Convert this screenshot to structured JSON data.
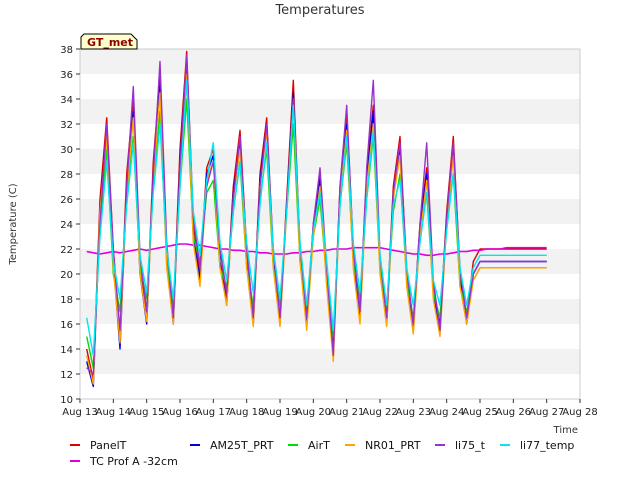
{
  "chart_data": {
    "type": "line",
    "title": "Temperatures",
    "xlabel": "Time",
    "ylabel": "Temperature (C)",
    "station_label": "GT_met",
    "x_ticks": [
      "Aug 13",
      "Aug 14",
      "Aug 15",
      "Aug 16",
      "Aug 17",
      "Aug 18",
      "Aug 19",
      "Aug 20",
      "Aug 21",
      "Aug 22",
      "Aug 23",
      "Aug 24",
      "Aug 25",
      "Aug 26",
      "Aug 27",
      "Aug 28"
    ],
    "xlim": [
      "Aug 13",
      "Aug 28"
    ],
    "ylim": [
      10,
      38
    ],
    "y_ticks": [
      10,
      12,
      14,
      16,
      18,
      20,
      22,
      24,
      26,
      28,
      30,
      32,
      34,
      36,
      38
    ],
    "grid": "horizontal bands",
    "legend": "bottom",
    "x_days": [
      13.2,
      13.4,
      13.6,
      13.8,
      14.0,
      14.2,
      14.4,
      14.6,
      14.8,
      15.0,
      15.2,
      15.4,
      15.6,
      15.8,
      16.0,
      16.2,
      16.4,
      16.6,
      16.8,
      17.0,
      17.2,
      17.4,
      17.6,
      17.8,
      18.0,
      18.2,
      18.4,
      18.6,
      18.8,
      19.0,
      19.2,
      19.4,
      19.6,
      19.8,
      20.0,
      20.2,
      20.4,
      20.6,
      20.8,
      21.0,
      21.2,
      21.4,
      21.6,
      21.8,
      22.0,
      22.2,
      22.4,
      22.6,
      22.8,
      23.0,
      23.2,
      23.4,
      23.6,
      23.8,
      24.0,
      24.2,
      24.4,
      24.6,
      24.8,
      25.0,
      25.2,
      25.4,
      25.6,
      25.8,
      26.0,
      26.2,
      26.4,
      26.6,
      26.8,
      27.0,
      27.2,
      27.4,
      27.6,
      27.8,
      28.0
    ],
    "series": [
      {
        "name": "PanelT",
        "color": "#dd0000",
        "values": [
          14.0,
          11.5,
          26.0,
          32.5,
          22.0,
          15.0,
          28.0,
          34.0,
          21.0,
          16.5,
          29.0,
          35.8,
          22.0,
          16.5,
          30.0,
          37.8,
          24.0,
          20.0,
          28.5,
          30.0,
          22.0,
          18.0,
          27.0,
          31.5,
          22.0,
          16.5,
          28.0,
          32.5,
          21.5,
          16.5,
          26.0,
          35.5,
          22.0,
          16.0,
          24.0,
          28.0,
          20.0,
          14.0,
          27.0,
          33.0,
          22.0,
          17.0,
          28.0,
          33.5,
          21.0,
          16.5,
          27.0,
          31.0,
          20.0,
          16.0,
          24.0,
          28.5,
          19.0,
          16.0,
          25.0,
          31.0,
          20.0,
          16.5,
          21.0,
          22.0,
          22.0,
          22.0,
          22.0,
          22.0,
          22.0,
          22.0,
          22.0,
          22.0,
          22.0,
          22.0,
          22.0,
          22.0,
          22.0,
          22.0,
          22.0
        ]
      },
      {
        "name": "TC Prof A -32cm",
        "color": "#dd00dd",
        "values": [
          21.8,
          21.7,
          21.6,
          21.7,
          21.8,
          21.7,
          21.8,
          21.9,
          22.0,
          21.9,
          22.0,
          22.1,
          22.2,
          22.3,
          22.4,
          22.4,
          22.3,
          22.3,
          22.2,
          22.1,
          22.0,
          22.0,
          21.9,
          21.9,
          21.8,
          21.8,
          21.7,
          21.7,
          21.6,
          21.6,
          21.6,
          21.7,
          21.7,
          21.8,
          21.8,
          21.9,
          21.9,
          22.0,
          22.0,
          22.0,
          22.1,
          22.1,
          22.1,
          22.1,
          22.1,
          22.0,
          21.9,
          21.8,
          21.7,
          21.6,
          21.6,
          21.5,
          21.5,
          21.6,
          21.6,
          21.7,
          21.8,
          21.8,
          21.9,
          21.9,
          22.0,
          22.0,
          22.0,
          22.1,
          22.1,
          22.1,
          22.1,
          22.1,
          22.1,
          22.1,
          22.1,
          22.1,
          22.1,
          22.1,
          22.1
        ]
      },
      {
        "name": "AM25T_PRT",
        "color": "#0000dd",
        "values": [
          13.0,
          11.0,
          25.0,
          31.5,
          21.0,
          14.0,
          27.0,
          33.0,
          20.0,
          16.0,
          28.0,
          35.0,
          21.0,
          16.0,
          29.0,
          37.0,
          23.0,
          19.5,
          28.0,
          29.5,
          21.0,
          17.5,
          26.5,
          30.5,
          21.0,
          16.0,
          27.5,
          32.0,
          21.0,
          16.0,
          25.5,
          34.5,
          21.5,
          15.8,
          23.5,
          27.5,
          19.5,
          13.5,
          26.5,
          32.0,
          21.0,
          16.5,
          27.5,
          33.0,
          20.5,
          16.0,
          26.5,
          30.0,
          19.5,
          15.5,
          23.5,
          28.0,
          18.5,
          15.5,
          24.5,
          30.0,
          19.5,
          16.0,
          20.0,
          21.0,
          21.0,
          21.0,
          21.0,
          21.0,
          21.0,
          21.0,
          21.0,
          21.0,
          21.0,
          21.0,
          21.0,
          21.0,
          21.0,
          21.0,
          21.0
        ]
      },
      {
        "name": "AirT",
        "color": "#00dd00",
        "values": [
          15.0,
          12.5,
          24.0,
          30.0,
          20.0,
          17.0,
          26.0,
          31.0,
          20.5,
          18.0,
          27.0,
          33.0,
          21.0,
          17.5,
          27.0,
          34.0,
          23.0,
          21.0,
          26.5,
          27.5,
          20.5,
          19.0,
          25.0,
          29.0,
          20.5,
          17.5,
          26.0,
          30.0,
          20.5,
          17.5,
          25.0,
          32.0,
          21.0,
          17.0,
          23.0,
          26.0,
          19.5,
          15.0,
          25.5,
          30.5,
          21.0,
          18.0,
          26.0,
          31.0,
          20.5,
          17.0,
          25.0,
          28.0,
          19.5,
          16.5,
          23.0,
          26.5,
          18.5,
          16.5,
          24.0,
          28.0,
          19.0,
          17.0,
          19.5,
          20.5,
          20.5,
          20.5,
          20.5,
          20.5,
          20.5,
          20.5,
          20.5,
          20.5,
          20.5,
          20.5,
          20.5,
          20.5,
          20.5,
          20.5,
          20.5
        ]
      },
      {
        "name": "NR01_PRT",
        "color": "#ffa500",
        "values": [
          13.5,
          11.2,
          25.0,
          31.0,
          20.5,
          14.5,
          26.5,
          32.5,
          20.0,
          16.2,
          27.5,
          34.5,
          20.5,
          16.0,
          28.5,
          36.0,
          22.5,
          19.0,
          27.5,
          29.0,
          20.5,
          17.5,
          26.0,
          30.0,
          20.5,
          15.8,
          27.0,
          31.5,
          20.5,
          15.8,
          25.0,
          34.0,
          21.0,
          15.5,
          23.0,
          27.0,
          19.0,
          13.0,
          26.0,
          31.5,
          20.5,
          16.0,
          27.0,
          32.0,
          20.0,
          15.8,
          26.0,
          29.5,
          19.0,
          15.2,
          23.0,
          27.5,
          18.0,
          15.0,
          24.0,
          29.5,
          19.0,
          16.0,
          19.5,
          20.5,
          20.5,
          20.5,
          20.5,
          20.5,
          20.5,
          20.5,
          20.5,
          20.5,
          20.5,
          20.5,
          20.5,
          20.5,
          20.5,
          20.5,
          20.5
        ]
      },
      {
        "name": "li75_t",
        "color": "#9932cc",
        "values": [
          12.5,
          12.0,
          24.0,
          32.0,
          22.0,
          15.5,
          27.0,
          35.0,
          21.5,
          17.0,
          28.0,
          37.0,
          22.5,
          16.5,
          28.5,
          37.5,
          24.5,
          20.5,
          27.0,
          29.0,
          22.0,
          18.5,
          26.0,
          31.0,
          22.0,
          16.5,
          27.0,
          32.0,
          22.0,
          16.5,
          25.5,
          34.0,
          22.5,
          16.5,
          24.0,
          28.5,
          20.5,
          13.5,
          27.0,
          33.5,
          22.0,
          17.0,
          28.5,
          35.5,
          21.5,
          16.5,
          26.5,
          30.5,
          20.5,
          16.0,
          24.0,
          30.5,
          19.5,
          15.5,
          24.5,
          30.5,
          20.5,
          16.5,
          20.0,
          21.0,
          21.0,
          21.0,
          21.0,
          21.0,
          21.0,
          21.0,
          21.0,
          21.0,
          21.0,
          21.0,
          21.0,
          21.0,
          21.0,
          21.0,
          21.0
        ]
      },
      {
        "name": "li77_temp",
        "color": "#00e5ee",
        "values": [
          16.5,
          13.5,
          23.0,
          29.0,
          21.0,
          18.0,
          25.5,
          30.5,
          21.5,
          18.5,
          26.5,
          32.0,
          22.0,
          18.0,
          27.0,
          35.5,
          25.0,
          21.5,
          27.5,
          30.5,
          22.5,
          19.5,
          25.0,
          29.0,
          22.5,
          18.5,
          25.5,
          30.5,
          22.0,
          18.0,
          25.0,
          33.5,
          22.5,
          17.5,
          23.5,
          26.5,
          21.0,
          15.5,
          25.5,
          31.0,
          22.5,
          18.5,
          26.0,
          31.5,
          21.5,
          17.5,
          25.5,
          27.5,
          20.5,
          17.5,
          22.5,
          26.5,
          19.5,
          17.5,
          23.5,
          28.0,
          20.5,
          17.5,
          20.5,
          21.5,
          21.5,
          21.5,
          21.5,
          21.5,
          21.5,
          21.5,
          21.5,
          21.5,
          21.5,
          21.5,
          21.5,
          21.5,
          21.5,
          21.5,
          21.5
        ]
      }
    ]
  }
}
